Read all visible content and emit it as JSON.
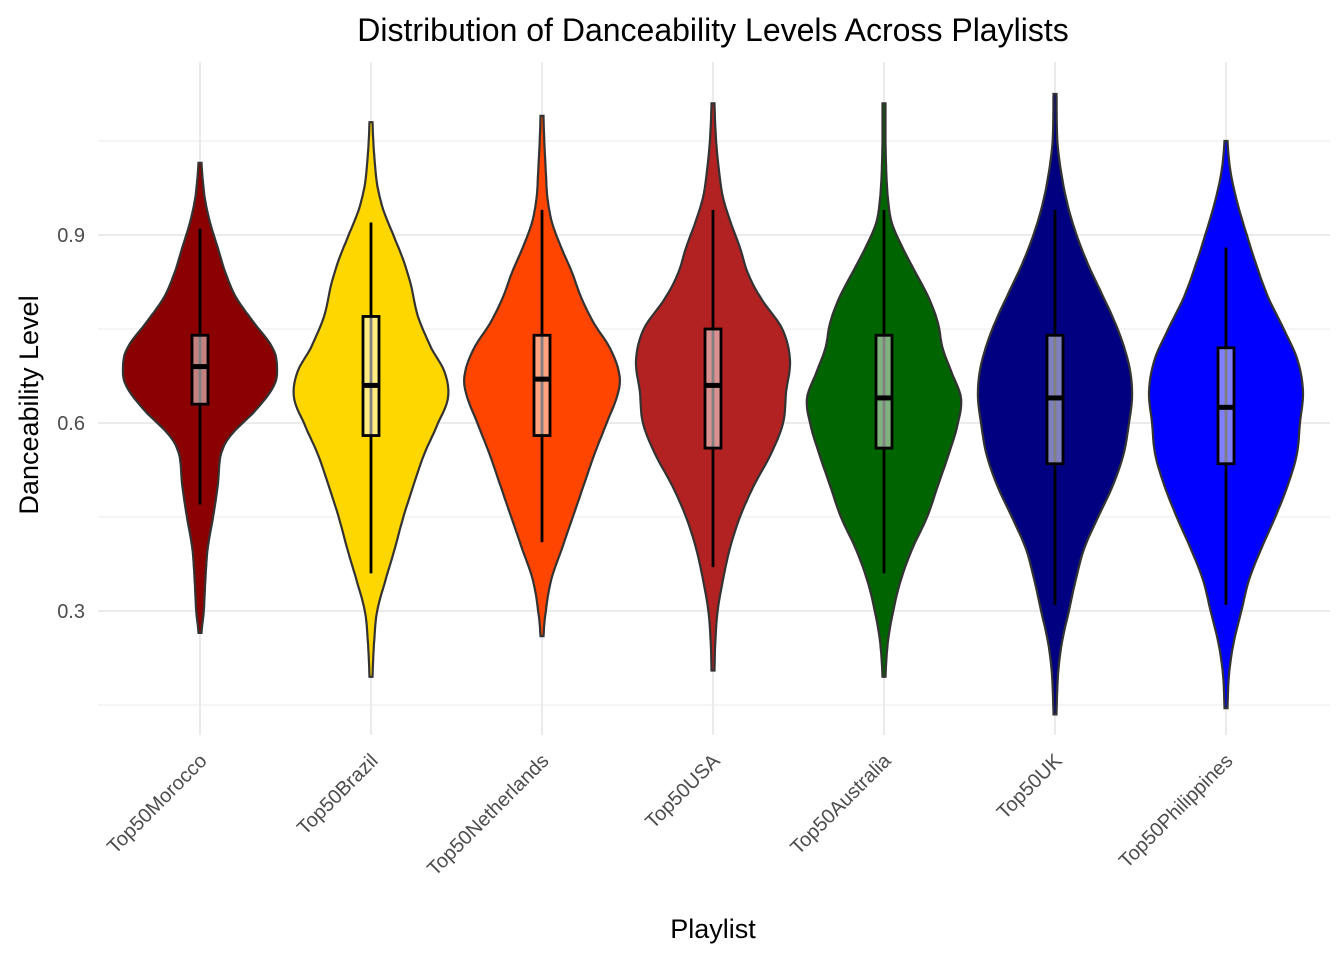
{
  "chart_data": {
    "type": "violin",
    "title": "Distribution of Danceability Levels Across Playlists",
    "xlabel": "Playlist",
    "ylabel": "Danceability Level",
    "ylim": [
      0.13,
      1.13
    ],
    "yticks": [
      0.3,
      0.6,
      0.9
    ],
    "ytick_labels": [
      "0.3",
      "0.6",
      "0.9"
    ],
    "grid": true,
    "legend": "none",
    "categories": [
      "Top50Morocco",
      "Top50Brazil",
      "Top50Netherlands",
      "Top50USA",
      "Top50Australia",
      "Top50UK",
      "Top50Philippines"
    ],
    "series": [
      {
        "category": "Top50Morocco",
        "color": "#8B0000",
        "min": 0.47,
        "q1": 0.63,
        "median": 0.69,
        "q3": 0.74,
        "max": 0.91,
        "density_range": [
          0.265,
          1.015
        ],
        "density": [
          [
            0.265,
            0.02
          ],
          [
            0.3,
            0.05
          ],
          [
            0.35,
            0.07
          ],
          [
            0.4,
            0.1
          ],
          [
            0.45,
            0.17
          ],
          [
            0.5,
            0.23
          ],
          [
            0.55,
            0.27
          ],
          [
            0.58,
            0.4
          ],
          [
            0.62,
            0.72
          ],
          [
            0.66,
            0.96
          ],
          [
            0.69,
            1.0
          ],
          [
            0.72,
            0.94
          ],
          [
            0.76,
            0.7
          ],
          [
            0.8,
            0.47
          ],
          [
            0.84,
            0.33
          ],
          [
            0.88,
            0.23
          ],
          [
            0.92,
            0.13
          ],
          [
            0.96,
            0.06
          ],
          [
            1.015,
            0.02
          ]
        ]
      },
      {
        "category": "Top50Brazil",
        "color": "#FFD700",
        "min": 0.36,
        "q1": 0.58,
        "median": 0.66,
        "q3": 0.77,
        "max": 0.92,
        "density_range": [
          0.195,
          1.08
        ],
        "density": [
          [
            0.195,
            0.02
          ],
          [
            0.25,
            0.04
          ],
          [
            0.3,
            0.08
          ],
          [
            0.35,
            0.19
          ],
          [
            0.4,
            0.31
          ],
          [
            0.45,
            0.42
          ],
          [
            0.5,
            0.55
          ],
          [
            0.55,
            0.69
          ],
          [
            0.6,
            0.87
          ],
          [
            0.64,
            1.0
          ],
          [
            0.68,
            0.96
          ],
          [
            0.72,
            0.78
          ],
          [
            0.77,
            0.61
          ],
          [
            0.82,
            0.52
          ],
          [
            0.86,
            0.42
          ],
          [
            0.9,
            0.29
          ],
          [
            0.94,
            0.16
          ],
          [
            0.98,
            0.08
          ],
          [
            1.03,
            0.04
          ],
          [
            1.08,
            0.02
          ]
        ]
      },
      {
        "category": "Top50Netherlands",
        "color": "#FF4500",
        "min": 0.41,
        "q1": 0.58,
        "median": 0.67,
        "q3": 0.74,
        "max": 0.94,
        "density_range": [
          0.26,
          1.09
        ],
        "density": [
          [
            0.26,
            0.02
          ],
          [
            0.3,
            0.05
          ],
          [
            0.35,
            0.12
          ],
          [
            0.4,
            0.26
          ],
          [
            0.45,
            0.4
          ],
          [
            0.5,
            0.54
          ],
          [
            0.55,
            0.68
          ],
          [
            0.6,
            0.84
          ],
          [
            0.65,
            0.99
          ],
          [
            0.68,
            1.0
          ],
          [
            0.72,
            0.88
          ],
          [
            0.76,
            0.67
          ],
          [
            0.8,
            0.51
          ],
          [
            0.84,
            0.39
          ],
          [
            0.88,
            0.25
          ],
          [
            0.92,
            0.13
          ],
          [
            0.96,
            0.07
          ],
          [
            1.0,
            0.05
          ],
          [
            1.05,
            0.03
          ],
          [
            1.09,
            0.02
          ]
        ]
      },
      {
        "category": "Top50USA",
        "color": "#B22222",
        "min": 0.37,
        "q1": 0.56,
        "median": 0.66,
        "q3": 0.75,
        "max": 0.94,
        "density_range": [
          0.205,
          1.11
        ],
        "density": [
          [
            0.205,
            0.02
          ],
          [
            0.25,
            0.03
          ],
          [
            0.3,
            0.06
          ],
          [
            0.35,
            0.13
          ],
          [
            0.4,
            0.22
          ],
          [
            0.45,
            0.35
          ],
          [
            0.5,
            0.53
          ],
          [
            0.55,
            0.75
          ],
          [
            0.6,
            0.91
          ],
          [
            0.65,
            0.95
          ],
          [
            0.7,
            1.0
          ],
          [
            0.75,
            0.9
          ],
          [
            0.8,
            0.62
          ],
          [
            0.84,
            0.45
          ],
          [
            0.88,
            0.35
          ],
          [
            0.92,
            0.23
          ],
          [
            0.96,
            0.13
          ],
          [
            1.0,
            0.08
          ],
          [
            1.05,
            0.04
          ],
          [
            1.11,
            0.02
          ]
        ]
      },
      {
        "category": "Top50Australia",
        "color": "#006400",
        "min": 0.36,
        "q1": 0.56,
        "median": 0.64,
        "q3": 0.74,
        "max": 0.94,
        "density_range": [
          0.195,
          1.11
        ],
        "density": [
          [
            0.195,
            0.02
          ],
          [
            0.25,
            0.05
          ],
          [
            0.3,
            0.12
          ],
          [
            0.35,
            0.22
          ],
          [
            0.4,
            0.37
          ],
          [
            0.45,
            0.56
          ],
          [
            0.5,
            0.7
          ],
          [
            0.55,
            0.84
          ],
          [
            0.6,
            0.96
          ],
          [
            0.64,
            1.0
          ],
          [
            0.68,
            0.88
          ],
          [
            0.72,
            0.76
          ],
          [
            0.76,
            0.7
          ],
          [
            0.8,
            0.58
          ],
          [
            0.84,
            0.41
          ],
          [
            0.88,
            0.24
          ],
          [
            0.92,
            0.1
          ],
          [
            0.96,
            0.05
          ],
          [
            1.0,
            0.03
          ],
          [
            1.05,
            0.02
          ],
          [
            1.11,
            0.02
          ]
        ]
      },
      {
        "category": "Top50UK",
        "color": "#000080",
        "min": 0.31,
        "q1": 0.535,
        "median": 0.64,
        "q3": 0.74,
        "max": 0.94,
        "density_range": [
          0.135,
          1.125
        ],
        "density": [
          [
            0.135,
            0.02
          ],
          [
            0.2,
            0.04
          ],
          [
            0.25,
            0.09
          ],
          [
            0.3,
            0.18
          ],
          [
            0.35,
            0.27
          ],
          [
            0.4,
            0.38
          ],
          [
            0.45,
            0.56
          ],
          [
            0.5,
            0.75
          ],
          [
            0.55,
            0.89
          ],
          [
            0.6,
            0.96
          ],
          [
            0.64,
            1.0
          ],
          [
            0.68,
            0.98
          ],
          [
            0.72,
            0.9
          ],
          [
            0.76,
            0.78
          ],
          [
            0.8,
            0.63
          ],
          [
            0.85,
            0.44
          ],
          [
            0.9,
            0.28
          ],
          [
            0.95,
            0.16
          ],
          [
            1.0,
            0.08
          ],
          [
            1.05,
            0.03
          ],
          [
            1.125,
            0.02
          ]
        ]
      },
      {
        "category": "Top50Philippines",
        "color": "#0000FF",
        "min": 0.31,
        "q1": 0.535,
        "median": 0.625,
        "q3": 0.72,
        "max": 0.88,
        "density_range": [
          0.145,
          1.05
        ],
        "density": [
          [
            0.145,
            0.02
          ],
          [
            0.2,
            0.04
          ],
          [
            0.25,
            0.1
          ],
          [
            0.3,
            0.2
          ],
          [
            0.35,
            0.3
          ],
          [
            0.4,
            0.46
          ],
          [
            0.45,
            0.64
          ],
          [
            0.5,
            0.8
          ],
          [
            0.55,
            0.92
          ],
          [
            0.6,
            0.96
          ],
          [
            0.65,
            1.0
          ],
          [
            0.7,
            0.93
          ],
          [
            0.75,
            0.75
          ],
          [
            0.8,
            0.55
          ],
          [
            0.85,
            0.4
          ],
          [
            0.9,
            0.27
          ],
          [
            0.95,
            0.15
          ],
          [
            1.0,
            0.06
          ],
          [
            1.05,
            0.02
          ]
        ]
      }
    ]
  }
}
